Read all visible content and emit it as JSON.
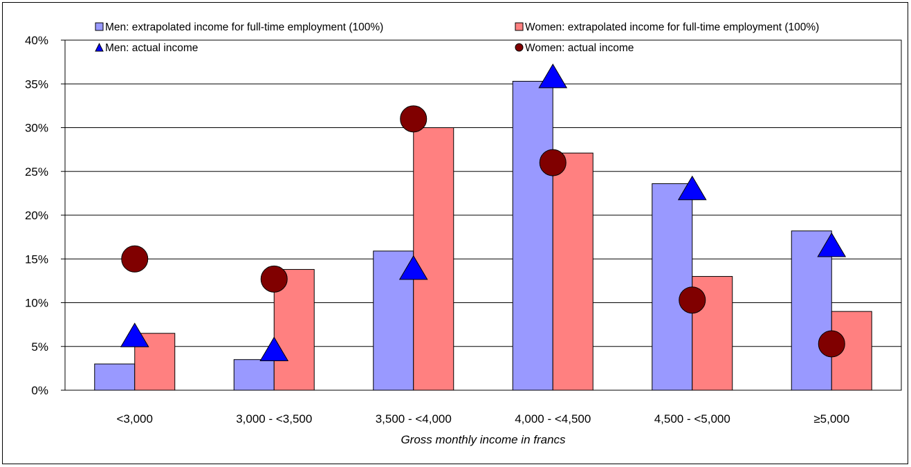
{
  "chart_data": {
    "type": "bar",
    "title": "",
    "xlabel": "Gross monthly income in francs",
    "ylabel": "",
    "ylim": [
      0,
      40
    ],
    "y_ticks": [
      "0%",
      "5%",
      "10%",
      "15%",
      "20%",
      "25%",
      "30%",
      "35%",
      "40%"
    ],
    "grid": "horizontal",
    "legend_position": "top",
    "categories": [
      "<3,000",
      "3,000 - <3,500",
      "3,500 - <4,000",
      "4,000 - <4,500",
      "4,500 - <5,000",
      "≥5,000"
    ],
    "series": [
      {
        "name": "Men: extrapolated income for full-time employment (100%)",
        "type": "bar",
        "color": "#9999FF",
        "values": [
          3.0,
          3.5,
          15.9,
          35.3,
          23.6,
          18.2
        ]
      },
      {
        "name": "Women: extrapolated income for full-time employment (100%)",
        "type": "bar",
        "color": "#FF8080",
        "values": [
          6.5,
          13.8,
          30.0,
          27.1,
          13.0,
          9.0
        ]
      },
      {
        "name": "Men: actual income",
        "type": "marker",
        "marker": "triangle",
        "color": "#0000FF",
        "values": [
          6.3,
          4.7,
          14.0,
          35.9,
          23.1,
          16.6
        ]
      },
      {
        "name": "Women: actual income",
        "type": "marker",
        "marker": "circle",
        "color": "#800000",
        "values": [
          15.0,
          12.7,
          31.0,
          26.0,
          10.3,
          5.3
        ]
      }
    ]
  }
}
